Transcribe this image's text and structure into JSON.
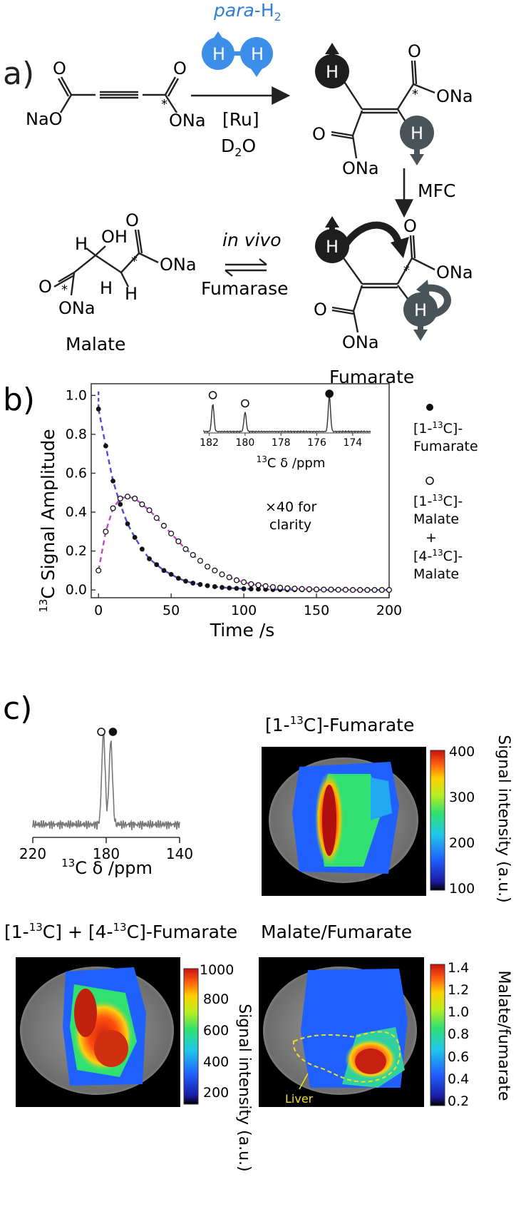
{
  "panel_a": {
    "letter": "a)",
    "para_label_italic": "para",
    "para_label_rest": "-H",
    "para_label_sub": "2",
    "h": "H",
    "o": "O",
    "ona": "ONa",
    "nao": "NaO",
    "oh": "OH",
    "star": "*",
    "catalyst": "[Ru]",
    "solvent_main": "D",
    "solvent_sub": "2",
    "solvent_end": "O",
    "mfc": "MFC",
    "in_vivo": "in vivo",
    "enzyme": "Fumarase",
    "malate": "Malate",
    "fumarate": "Fumarate",
    "colors": {
      "para_blue": "#3d8ee8",
      "dark_spin": "#222222",
      "grey_spin": "#4a5357",
      "blue_text": "#2f7fd8"
    }
  },
  "panel_b": {
    "letter": "b)",
    "annotation": "×40 for clarity",
    "annotation_line1": "×40 for",
    "annotation_line2": "clarity",
    "inset_xlabel_sup": "13",
    "inset_xlabel": "C δ /ppm",
    "legend_fumarate_l1": "[1-",
    "legend_sup": "13",
    "legend_fumarate_l1_end": "C]-",
    "legend_fumarate_l2": "Fumarate",
    "legend_malate1_l1": "[1-",
    "legend_malate1_l1_end": "C]-",
    "legend_malate1_l2": "Malate",
    "legend_plus": "+",
    "legend_malate4_l1": "[4-",
    "legend_malate4_l1_end": "C]-",
    "legend_malate4_l2": "Malate",
    "ylabel_sup": "13",
    "ylabel": "C Signal Amplitude",
    "xlabel": "Time /s"
  },
  "chart_data": [
    {
      "type": "scatter",
      "xlabel": "Time /s",
      "ylabel": "13C Signal Amplitude",
      "xlim": [
        -5,
        200
      ],
      "ylim": [
        -0.04,
        1.06
      ],
      "xticks": [
        0,
        50,
        100,
        150,
        200
      ],
      "yticks": [
        0.0,
        0.2,
        0.4,
        0.6,
        0.8,
        1.0
      ],
      "series": [
        {
          "name": "[1-13C]-Fumarate",
          "marker": "filled",
          "x": [
            0,
            5,
            10,
            15,
            20,
            25,
            30,
            35,
            40,
            45,
            50,
            55,
            60,
            65,
            70,
            75,
            80,
            85,
            90,
            95,
            100,
            105,
            110,
            115,
            120,
            125,
            130,
            135,
            140,
            145,
            150,
            155,
            160,
            165,
            170,
            175,
            180,
            185,
            190,
            195,
            200
          ],
          "y": [
            0.93,
            0.74,
            0.56,
            0.44,
            0.34,
            0.27,
            0.21,
            0.16,
            0.13,
            0.1,
            0.08,
            0.06,
            0.045,
            0.035,
            0.028,
            0.022,
            0.017,
            0.013,
            0.01,
            0.008,
            0.006,
            0.005,
            0.004,
            0.003,
            0.002,
            0.002,
            0.001,
            0.001,
            0.001,
            0.0,
            0.0,
            0.0,
            0.0,
            0.0,
            0.0,
            0.0,
            0.0,
            0.0,
            0.0,
            0.0,
            0.0
          ]
        },
        {
          "name": "[1-13C]-Malate + [4-13C]-Malate",
          "marker": "open",
          "x": [
            0,
            5,
            10,
            15,
            20,
            25,
            30,
            35,
            40,
            45,
            50,
            55,
            60,
            65,
            70,
            75,
            80,
            85,
            90,
            95,
            100,
            105,
            110,
            115,
            120,
            125,
            130,
            135,
            140,
            145,
            150,
            155,
            160,
            165,
            170,
            175,
            180,
            185,
            190,
            195,
            200
          ],
          "y": [
            0.1,
            0.3,
            0.42,
            0.47,
            0.48,
            0.47,
            0.44,
            0.41,
            0.37,
            0.33,
            0.29,
            0.25,
            0.21,
            0.18,
            0.15,
            0.12,
            0.1,
            0.08,
            0.065,
            0.05,
            0.04,
            0.03,
            0.025,
            0.02,
            0.015,
            0.012,
            0.009,
            0.007,
            0.005,
            0.004,
            0.003,
            0.002,
            0.002,
            0.001,
            0.001,
            0.0,
            0.0,
            0.0,
            0.0,
            0.0,
            0.0
          ]
        }
      ],
      "fits": [
        {
          "color": "#4c4cd8",
          "style": "dashed"
        },
        {
          "color": "#c048c8",
          "style": "dashed"
        }
      ]
    },
    {
      "type": "line",
      "xlabel": "13C δ /ppm",
      "xlim": [
        182.3,
        173.0
      ],
      "xticks": [
        182,
        180,
        178,
        176,
        174
      ],
      "peaks": [
        {
          "ppm": 181.8,
          "height": 0.78,
          "marker": "open"
        },
        {
          "ppm": 180.0,
          "height": 0.55,
          "marker": "open"
        },
        {
          "ppm": 175.3,
          "height": 1.0,
          "marker": "filled",
          "truncated": true
        }
      ]
    },
    {
      "type": "line",
      "xlabel": "13C δ /ppm",
      "xlim": [
        220,
        140
      ],
      "xticks": [
        220,
        180,
        140
      ],
      "peaks": [
        {
          "ppm": 181.5,
          "height": 1.0,
          "marker": "open"
        },
        {
          "ppm": 177.5,
          "height": 0.9,
          "marker": "filled"
        }
      ]
    }
  ],
  "panel_c": {
    "letter": "c)",
    "spectrum_xlabel_sup": "13",
    "spectrum_xlabel": "C δ /ppm",
    "map1": {
      "title_pre": "[1-",
      "title_sup": "13",
      "title_post": "C]-Fumarate",
      "cbar_label": "Signal intensity (a.u.)",
      "ticks": [
        "400",
        "300",
        "200",
        "100"
      ]
    },
    "map2": {
      "title_pre": "[1-",
      "title_sup": "13",
      "title_mid": "C] + [4-",
      "title_sup2": "13",
      "title_post": "C]-Fumarate",
      "cbar_label": "Signal intensity (a.u.)",
      "ticks": [
        "1000",
        "800",
        "600",
        "400",
        "200"
      ]
    },
    "map3": {
      "title": "Malate/Fumarate",
      "cbar_label": "Malate/fumarate",
      "ticks": [
        "1.4",
        "1.2",
        "1.0",
        "0.8",
        "0.6",
        "0.4",
        "0.2"
      ],
      "annotation": "Liver"
    }
  }
}
